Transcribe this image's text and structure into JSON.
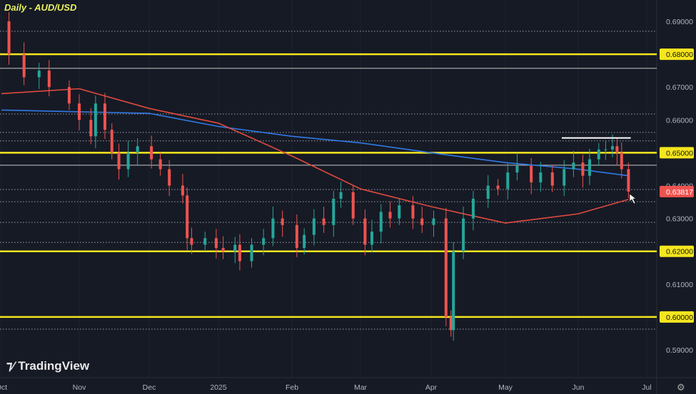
{
  "chart_data": {
    "type": "candlestick",
    "title": "Daily - AUD/USD",
    "ylim": [
      0.585,
      0.6975
    ],
    "y_ticks": [
      "0.69000",
      "0.68000",
      "0.67000",
      "0.66000",
      "0.65000",
      "0.64000",
      "0.63000",
      "0.62000",
      "0.61000",
      "0.60000",
      "0.59000"
    ],
    "x_ticks": [
      {
        "label": "Oct",
        "date": "2024-10-01"
      },
      {
        "label": "Nov",
        "date": "2024-11-01"
      },
      {
        "label": "Dec",
        "date": "2024-12-01"
      },
      {
        "label": "2025",
        "date": "2025-01-01"
      },
      {
        "label": "Feb",
        "date": "2025-02-01"
      },
      {
        "label": "Mar",
        "date": "2025-03-01"
      },
      {
        "label": "Apr",
        "date": "2025-04-01"
      },
      {
        "label": "May",
        "date": "2025-05-01"
      },
      {
        "label": "Jun",
        "date": "2025-06-01"
      },
      {
        "label": "Jul",
        "date": "2025-07-01"
      }
    ],
    "closes": [
      [
        "2024-10-01",
        0.69
      ],
      [
        "2024-10-04",
        0.68
      ],
      [
        "2024-10-10",
        0.673
      ],
      [
        "2024-10-16",
        0.675
      ],
      [
        "2024-10-20",
        0.67
      ],
      [
        "2024-10-28",
        0.665
      ],
      [
        "2024-11-01",
        0.66
      ],
      [
        "2024-11-06",
        0.655
      ],
      [
        "2024-11-08",
        0.665
      ],
      [
        "2024-11-12",
        0.657
      ],
      [
        "2024-11-15",
        0.65
      ],
      [
        "2024-11-18",
        0.645
      ],
      [
        "2024-11-22",
        0.65
      ],
      [
        "2024-11-26",
        0.652
      ],
      [
        "2024-12-02",
        0.648
      ],
      [
        "2024-12-06",
        0.645
      ],
      [
        "2024-12-10",
        0.64
      ],
      [
        "2024-12-16",
        0.637
      ],
      [
        "2024-12-18",
        0.624
      ],
      [
        "2024-12-20",
        0.622
      ],
      [
        "2024-12-26",
        0.624
      ],
      [
        "2024-12-31",
        0.621
      ],
      [
        "2025-01-03",
        0.62
      ],
      [
        "2025-01-08",
        0.622
      ],
      [
        "2025-01-10",
        0.617
      ],
      [
        "2025-01-15",
        0.622
      ],
      [
        "2025-01-20",
        0.624
      ],
      [
        "2025-01-24",
        0.63
      ],
      [
        "2025-01-28",
        0.628
      ],
      [
        "2025-02-03",
        0.621
      ],
      [
        "2025-02-06",
        0.625
      ],
      [
        "2025-02-10",
        0.63
      ],
      [
        "2025-02-14",
        0.628
      ],
      [
        "2025-02-18",
        0.636
      ],
      [
        "2025-02-21",
        0.638
      ],
      [
        "2025-02-26",
        0.63
      ],
      [
        "2025-03-03",
        0.622
      ],
      [
        "2025-03-06",
        0.626
      ],
      [
        "2025-03-10",
        0.632
      ],
      [
        "2025-03-14",
        0.63
      ],
      [
        "2025-03-18",
        0.634
      ],
      [
        "2025-03-24",
        0.63
      ],
      [
        "2025-03-28",
        0.628
      ],
      [
        "2025-04-02",
        0.63
      ],
      [
        "2025-04-07",
        0.6
      ],
      [
        "2025-04-09",
        0.596
      ],
      [
        "2025-04-10",
        0.62
      ],
      [
        "2025-04-14",
        0.63
      ],
      [
        "2025-04-18",
        0.636
      ],
      [
        "2025-04-24",
        0.64
      ],
      [
        "2025-04-28",
        0.639
      ],
      [
        "2025-05-02",
        0.644
      ],
      [
        "2025-05-06",
        0.646
      ],
      [
        "2025-05-12",
        0.641
      ],
      [
        "2025-05-16",
        0.644
      ],
      [
        "2025-05-21",
        0.64
      ],
      [
        "2025-05-26",
        0.645
      ],
      [
        "2025-05-30",
        0.647
      ],
      [
        "2025-06-03",
        0.643
      ],
      [
        "2025-06-06",
        0.648
      ],
      [
        "2025-06-10",
        0.651
      ],
      [
        "2025-06-13",
        0.651
      ],
      [
        "2025-06-16",
        0.652
      ],
      [
        "2025-06-18",
        0.65
      ],
      [
        "2025-06-20",
        0.645
      ],
      [
        "2025-06-23",
        0.63817
      ]
    ],
    "ma_blue": [
      [
        "2024-10-01",
        0.663
      ],
      [
        "2024-12-01",
        0.662
      ],
      [
        "2025-01-01",
        0.658
      ],
      [
        "2025-02-01",
        0.655
      ],
      [
        "2025-03-01",
        0.653
      ],
      [
        "2025-04-01",
        0.65
      ],
      [
        "2025-05-01",
        0.647
      ],
      [
        "2025-06-01",
        0.645
      ],
      [
        "2025-06-23",
        0.643
      ]
    ],
    "ma_red": [
      [
        "2024-10-01",
        0.668
      ],
      [
        "2024-11-01",
        0.6695
      ],
      [
        "2024-12-01",
        0.6635
      ],
      [
        "2025-01-01",
        0.659
      ],
      [
        "2025-02-01",
        0.649
      ],
      [
        "2025-03-01",
        0.639
      ],
      [
        "2025-04-01",
        0.6336
      ],
      [
        "2025-05-01",
        0.6286
      ],
      [
        "2025-06-01",
        0.6314
      ],
      [
        "2025-06-23",
        0.6358
      ]
    ],
    "yellow_levels": [
      0.68,
      0.65,
      0.62,
      0.6
    ],
    "white_levels": [
      0.6757,
      0.6462
    ],
    "dotted_levels": [
      0.687,
      0.6618,
      0.6562,
      0.6536,
      0.6388,
      0.6351,
      0.6288,
      0.6227,
      0.5963
    ],
    "resistance_segment": {
      "value": 0.6545,
      "from": "2025-05-25",
      "to": "2025-06-24"
    },
    "last_price": "0.63817",
    "colors": {
      "up": "#26a69a",
      "down": "#ef5350",
      "ma_blue": "#2f7ae5",
      "ma_red": "#e04a3f",
      "level": "#f5e61e",
      "bg": "#161a25"
    }
  },
  "branding": {
    "logo_text": "TradingView"
  }
}
